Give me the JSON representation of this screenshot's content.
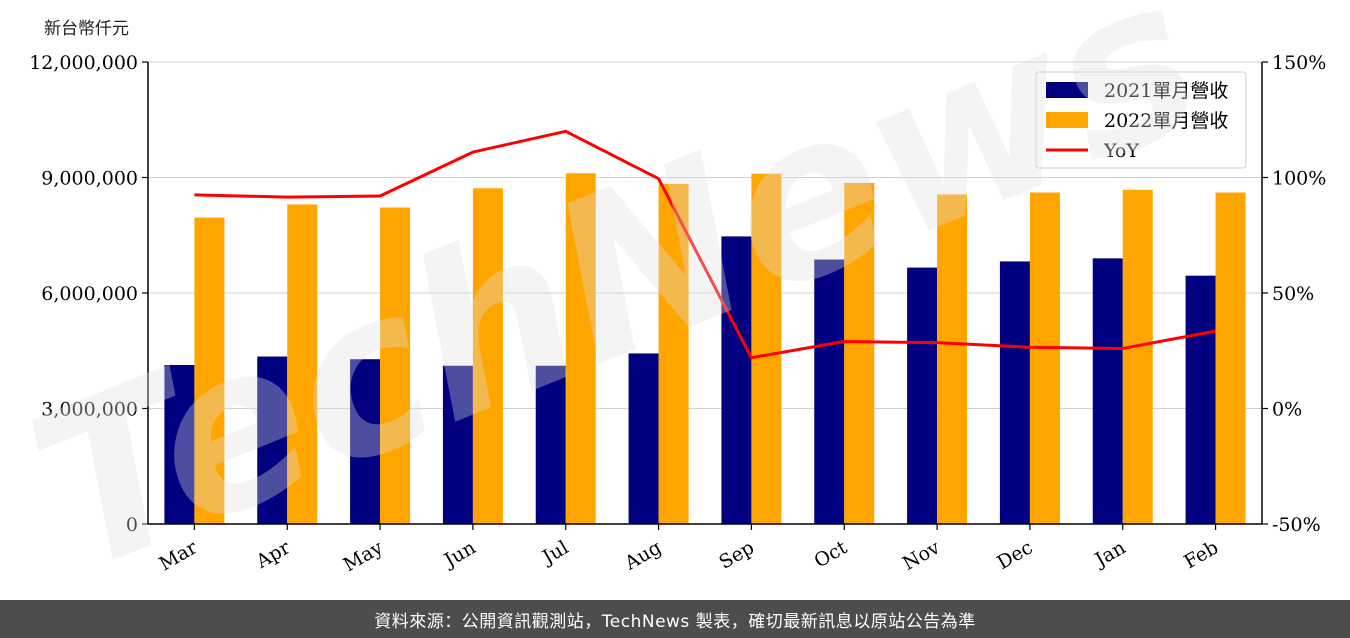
{
  "unit_label": "新台幣仟元",
  "watermark_text": "TechNews",
  "footer_text": "資料來源：公開資訊觀測站，TechNews 製表，確切最新訊息以原站公告為準",
  "colors": {
    "series_2021": "#000080",
    "series_2022": "#FFA500",
    "yoy": "#FF0000",
    "grid": "#d0d0d0",
    "footer_bg": "#4d4d4d"
  },
  "chart_data": {
    "type": "bar",
    "categories": [
      "Mar",
      "Apr",
      "May",
      "Jun",
      "Jul",
      "Aug",
      "Sep",
      "Oct",
      "Nov",
      "Dec",
      "Jan",
      "Feb"
    ],
    "series": [
      {
        "name": "2021單月營收",
        "type": "bar",
        "axis": "left",
        "values": [
          4130000,
          4350000,
          4280000,
          4110000,
          4110000,
          4430000,
          7470000,
          6870000,
          6660000,
          6820000,
          6900000,
          6450000
        ]
      },
      {
        "name": "2022單月營收",
        "type": "bar",
        "axis": "left",
        "values": [
          7960000,
          8300000,
          8220000,
          8720000,
          9110000,
          8830000,
          9100000,
          8860000,
          8560000,
          8610000,
          8680000,
          8610000
        ]
      },
      {
        "name": "YoY",
        "type": "line",
        "axis": "right",
        "values": [
          92.5,
          91.5,
          92.0,
          111.0,
          120.0,
          99.5,
          22.0,
          29.0,
          28.5,
          26.5,
          26.0,
          33.5
        ]
      }
    ],
    "y_left": {
      "ylim": [
        0,
        12000000
      ],
      "ticks": [
        "0",
        "3,000,000",
        "6,000,000",
        "9,000,000",
        "12,000,000"
      ]
    },
    "y_right": {
      "ylim": [
        -50,
        150
      ],
      "ticks": [
        "-50%",
        "0%",
        "50%",
        "100%",
        "150%"
      ]
    },
    "legend": "top-right",
    "grid": "horizontal"
  }
}
